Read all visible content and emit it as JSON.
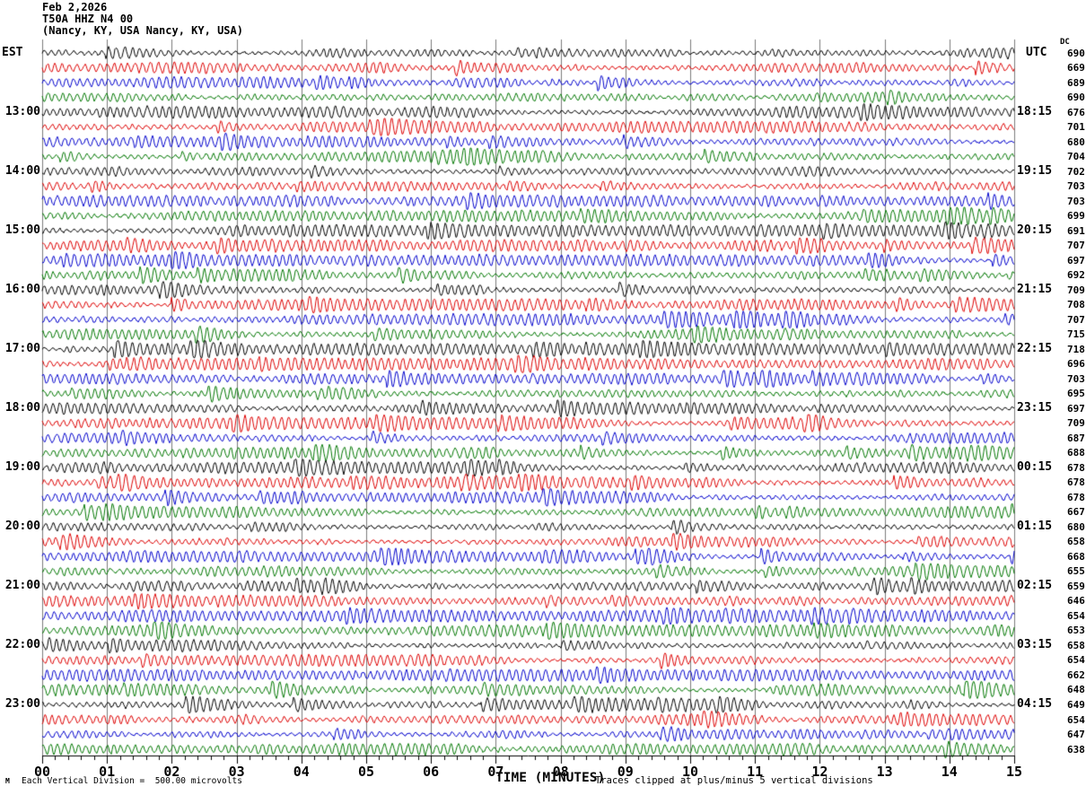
{
  "title": {
    "date": "Feb 2,2026",
    "station": "T50A HHZ N4 00",
    "location": "(Nancy, KY, USA Nancy, KY, USA)"
  },
  "axes": {
    "left_label": "EST",
    "right_label": "UTC",
    "dc_label": "DC",
    "x_title": "TIME (MINUTES)",
    "x_tick_labels": [
      "00",
      "01",
      "02",
      "03",
      "04",
      "05",
      "06",
      "07",
      "08",
      "09",
      "10",
      "11",
      "12",
      "13",
      "14",
      "15"
    ]
  },
  "footer": {
    "scale_note": "Each Vertical Division =  500.00 microvolts",
    "clip_note": "Traces clipped at plus/minus 5 vertical divisions",
    "corner_glyph": "M"
  },
  "colors": {
    "trace_cycle": [
      "#000000",
      "#dd0000",
      "#0000cc",
      "#007700"
    ],
    "grid": "#7b7b7b",
    "axis": "#000000"
  },
  "chart_data": {
    "type": "line",
    "subtype": "helicorder-seismogram",
    "title": "T50A HHZ N4 00 (Nancy, KY, USA) Feb 2,2026",
    "xlabel": "TIME (MINUTES)",
    "x_range_minutes": [
      0,
      15
    ],
    "minutes_per_row": 15,
    "rows_total": 48,
    "row_color_cycle": [
      "black",
      "red",
      "blue",
      "green"
    ],
    "vertical_division_microvolts": 500.0,
    "clip_divisions": 5,
    "waveform_note": "continuous seismic background noise traces; values not individually labeled, clipped at plus/minus 5 vertical divisions",
    "est_hour_labels": [
      "13:00",
      "14:00",
      "15:00",
      "16:00",
      "17:00",
      "18:00",
      "19:00",
      "20:00",
      "21:00",
      "22:00",
      "23:00"
    ],
    "utc_hour_labels": [
      "18:15",
      "19:15",
      "20:15",
      "21:15",
      "22:15",
      "23:15",
      "00:15",
      "01:15",
      "02:15",
      "03:15",
      "04:15"
    ],
    "rows": [
      {
        "est": "",
        "utc": "",
        "dc": 690
      },
      {
        "est": "",
        "utc": "",
        "dc": 669
      },
      {
        "est": "",
        "utc": "",
        "dc": 689
      },
      {
        "est": "",
        "utc": "",
        "dc": 690
      },
      {
        "est": "13:00",
        "utc": "18:15",
        "dc": 676
      },
      {
        "est": "",
        "utc": "",
        "dc": 701
      },
      {
        "est": "",
        "utc": "",
        "dc": 680
      },
      {
        "est": "",
        "utc": "",
        "dc": 704
      },
      {
        "est": "14:00",
        "utc": "19:15",
        "dc": 702
      },
      {
        "est": "",
        "utc": "",
        "dc": 703
      },
      {
        "est": "",
        "utc": "",
        "dc": 703
      },
      {
        "est": "",
        "utc": "",
        "dc": 699
      },
      {
        "est": "15:00",
        "utc": "20:15",
        "dc": 691
      },
      {
        "est": "",
        "utc": "",
        "dc": 707
      },
      {
        "est": "",
        "utc": "",
        "dc": 697
      },
      {
        "est": "",
        "utc": "",
        "dc": 692
      },
      {
        "est": "16:00",
        "utc": "21:15",
        "dc": 709
      },
      {
        "est": "",
        "utc": "",
        "dc": 708
      },
      {
        "est": "",
        "utc": "",
        "dc": 707
      },
      {
        "est": "",
        "utc": "",
        "dc": 715
      },
      {
        "est": "17:00",
        "utc": "22:15",
        "dc": 718
      },
      {
        "est": "",
        "utc": "",
        "dc": 696
      },
      {
        "est": "",
        "utc": "",
        "dc": 703
      },
      {
        "est": "",
        "utc": "",
        "dc": 695
      },
      {
        "est": "18:00",
        "utc": "23:15",
        "dc": 697
      },
      {
        "est": "",
        "utc": "",
        "dc": 709
      },
      {
        "est": "",
        "utc": "",
        "dc": 687
      },
      {
        "est": "",
        "utc": "",
        "dc": 688
      },
      {
        "est": "19:00",
        "utc": "00:15",
        "dc": 678
      },
      {
        "est": "",
        "utc": "",
        "dc": 678
      },
      {
        "est": "",
        "utc": "",
        "dc": 678
      },
      {
        "est": "",
        "utc": "",
        "dc": 667
      },
      {
        "est": "20:00",
        "utc": "01:15",
        "dc": 680
      },
      {
        "est": "",
        "utc": "",
        "dc": 658
      },
      {
        "est": "",
        "utc": "",
        "dc": 668
      },
      {
        "est": "",
        "utc": "",
        "dc": 655
      },
      {
        "est": "21:00",
        "utc": "02:15",
        "dc": 659
      },
      {
        "est": "",
        "utc": "",
        "dc": 646
      },
      {
        "est": "",
        "utc": "",
        "dc": 654
      },
      {
        "est": "",
        "utc": "",
        "dc": 653
      },
      {
        "est": "22:00",
        "utc": "03:15",
        "dc": 658
      },
      {
        "est": "",
        "utc": "",
        "dc": 654
      },
      {
        "est": "",
        "utc": "",
        "dc": 662
      },
      {
        "est": "",
        "utc": "",
        "dc": 648
      },
      {
        "est": "23:00",
        "utc": "04:15",
        "dc": 649
      },
      {
        "est": "",
        "utc": "",
        "dc": 654
      },
      {
        "est": "",
        "utc": "",
        "dc": 647
      },
      {
        "est": "",
        "utc": "",
        "dc": 638
      }
    ]
  }
}
